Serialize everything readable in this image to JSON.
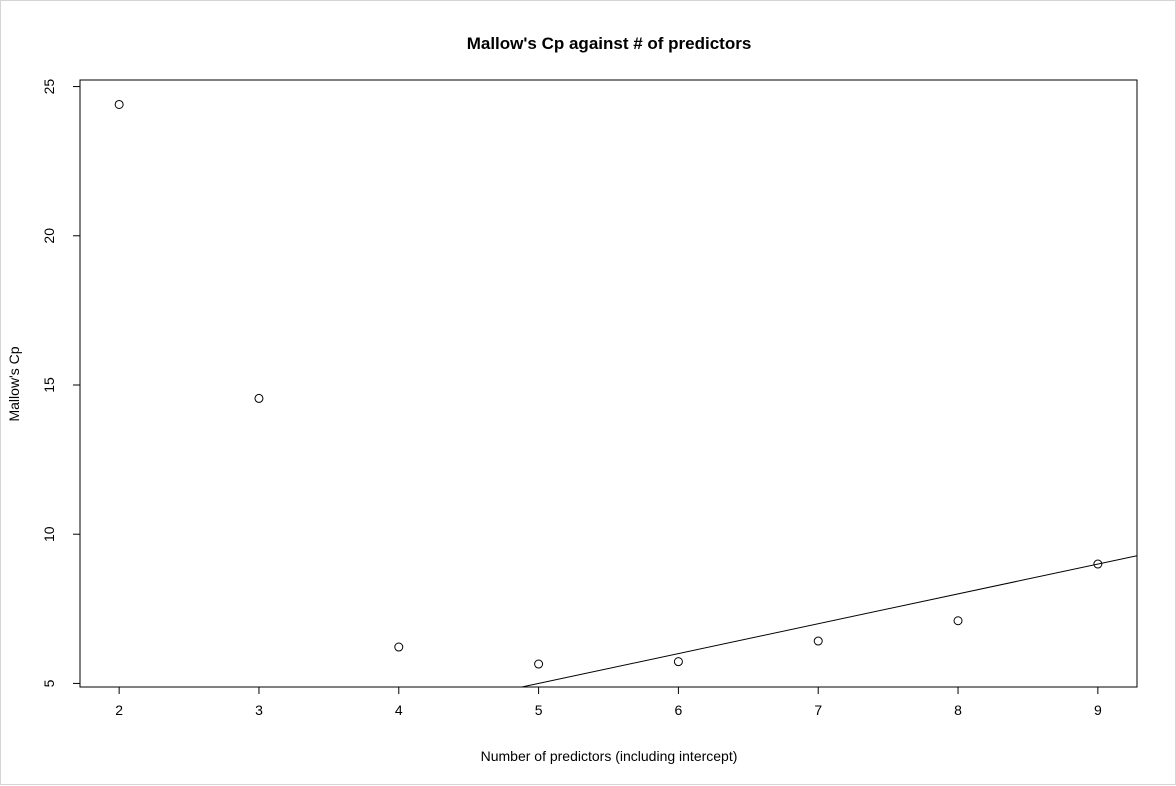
{
  "chart_data": {
    "type": "scatter",
    "title": "Mallow's Cp against # of predictors",
    "xlabel": "Number of predictors (including intercept)",
    "ylabel": "Mallow's Cp",
    "xlim": [
      1.72,
      9.28
    ],
    "ylim": [
      4.88,
      25.22
    ],
    "xticks": [
      2,
      3,
      4,
      5,
      6,
      7,
      8,
      9
    ],
    "yticks": [
      5,
      10,
      15,
      20,
      25
    ],
    "x": [
      2,
      3,
      4,
      5,
      6,
      7,
      8,
      9
    ],
    "y": [
      24.4,
      14.55,
      6.22,
      5.65,
      5.73,
      6.42,
      7.1,
      9.0
    ],
    "reference_line": {
      "intercept": 0,
      "slope": 1
    },
    "grid": false,
    "point_style": "open-circle",
    "colors": {
      "axis": "#000000",
      "points": "#000000",
      "line": "#000000"
    }
  }
}
